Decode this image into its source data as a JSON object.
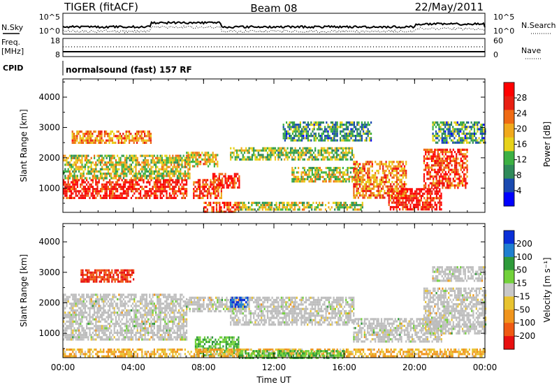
{
  "header": {
    "radar": "TIGER (fitACF)",
    "beam": "Beam 08",
    "date": "22/May/2011"
  },
  "top_strip": {
    "left_label": "N.Sky",
    "left_ticks": [
      "10^5",
      "10^0"
    ],
    "right_label": "N.Search",
    "right_ticks": [
      "10^5",
      "10^0"
    ]
  },
  "freq_strip": {
    "left_label_1": "Freq.",
    "left_label_2": "[MHz]",
    "left_ticks": [
      "18",
      "8"
    ],
    "right_label": "Nave",
    "right_ticks": [
      "60",
      "0"
    ]
  },
  "cpid": {
    "label": "CPID",
    "value": "normalsound (fast) 157 RF"
  },
  "colors": {
    "power_scale": [
      "#0000ff",
      "#1a4ab0",
      "#2f8a5a",
      "#3cb043",
      "#e7d21a",
      "#f0a91c",
      "#ef6a13",
      "#e81f12",
      "#ff0000"
    ],
    "velocity_scale": [
      "#0a2fd8",
      "#1f7fd0",
      "#2e9a3a",
      "#72d13a",
      "#c8c8c8",
      "#e8c330",
      "#f0941c",
      "#ef5a13",
      "#e81010"
    ],
    "ground_scatter": "#bdbdbd"
  },
  "chart_data": [
    {
      "type": "heatmap",
      "title": "",
      "xlabel": "",
      "ylabel": "Slant Range [km]",
      "x_ticks": [
        "00:00",
        "04:00",
        "08:00",
        "12:00",
        "16:00",
        "20:00",
        "00:00"
      ],
      "xlim_hours": [
        0,
        24
      ],
      "y_ticks": [
        1000,
        2000,
        3000,
        4000
      ],
      "ylim": [
        200,
        4600
      ],
      "colorbar": {
        "label": "Power [dB]",
        "ticks": [
          4,
          8,
          12,
          16,
          20,
          24,
          28
        ],
        "range": [
          0,
          32
        ]
      },
      "echo_bands": [
        {
          "t0": 0.0,
          "t1": 7.0,
          "r0": 700,
          "r1": 1300,
          "level": 28
        },
        {
          "t0": 0.0,
          "t1": 7.2,
          "r0": 1300,
          "r1": 2100,
          "level": 16
        },
        {
          "t0": 0.5,
          "t1": 5.0,
          "r0": 2500,
          "r1": 2900,
          "level": 22
        },
        {
          "t0": 7.0,
          "t1": 8.8,
          "r0": 1700,
          "r1": 2200,
          "level": 18
        },
        {
          "t0": 7.4,
          "t1": 9.0,
          "r0": 700,
          "r1": 1300,
          "level": 26
        },
        {
          "t0": 8.5,
          "t1": 10.0,
          "r0": 1000,
          "r1": 1500,
          "level": 28
        },
        {
          "t0": 8.0,
          "t1": 10.0,
          "r0": 250,
          "r1": 550,
          "level": 26
        },
        {
          "t0": 9.5,
          "t1": 16.5,
          "r0": 1950,
          "r1": 2350,
          "level": 14
        },
        {
          "t0": 13.0,
          "t1": 17.0,
          "r0": 1200,
          "r1": 1700,
          "level": 16
        },
        {
          "t0": 10.0,
          "t1": 17.0,
          "r0": 300,
          "r1": 550,
          "level": 15
        },
        {
          "t0": 16.5,
          "t1": 19.5,
          "r0": 700,
          "r1": 1900,
          "level": 22
        },
        {
          "t0": 18.5,
          "t1": 21.5,
          "r0": 300,
          "r1": 1000,
          "level": 28
        },
        {
          "t0": 20.5,
          "t1": 23.0,
          "r0": 1000,
          "r1": 2300,
          "level": 26
        },
        {
          "t0": 21.0,
          "t1": 24.0,
          "r0": 2500,
          "r1": 3200,
          "level": 10
        },
        {
          "t0": 12.5,
          "t1": 17.5,
          "r0": 2600,
          "r1": 3200,
          "level": 10
        }
      ]
    },
    {
      "type": "heatmap",
      "title": "",
      "xlabel": "Time UT",
      "ylabel": "Slant Range [km]",
      "x_ticks": [
        "00:00",
        "04:00",
        "08:00",
        "12:00",
        "16:00",
        "20:00",
        "00:00"
      ],
      "xlim_hours": [
        0,
        24
      ],
      "y_ticks": [
        1000,
        2000,
        3000,
        4000
      ],
      "ylim": [
        200,
        4600
      ],
      "colorbar": {
        "label": "Velocity [m s⁻¹]",
        "ticks": [
          "200",
          "100",
          "50",
          "15",
          "-15",
          "-50",
          "-100",
          "-200"
        ],
        "range": [
          -250,
          250
        ]
      },
      "echo_bands": [
        {
          "t0": 0.0,
          "t1": 7.0,
          "r0": 800,
          "r1": 2300,
          "level": 0,
          "ground": true
        },
        {
          "t0": 7.0,
          "t1": 10.0,
          "r0": 1700,
          "r1": 2200,
          "level": 0,
          "ground": true
        },
        {
          "t0": 7.5,
          "t1": 10.0,
          "r0": 300,
          "r1": 900,
          "level": 50
        },
        {
          "t0": 9.5,
          "t1": 16.5,
          "r0": 1300,
          "r1": 2200,
          "level": 0,
          "ground": true
        },
        {
          "t0": 9.5,
          "t1": 10.5,
          "r0": 1850,
          "r1": 2200,
          "level": 200
        },
        {
          "t0": 0.0,
          "t1": 24.0,
          "r0": 250,
          "r1": 500,
          "level": -50
        },
        {
          "t0": 1.0,
          "t1": 4.0,
          "r0": 2700,
          "r1": 3100,
          "level": -200
        },
        {
          "t0": 16.5,
          "t1": 21.5,
          "r0": 700,
          "r1": 1500,
          "level": 0,
          "ground": true
        },
        {
          "t0": 20.5,
          "t1": 24.0,
          "r0": 1000,
          "r1": 2500,
          "level": 0,
          "ground": true
        },
        {
          "t0": 21.0,
          "t1": 24.0,
          "r0": 2700,
          "r1": 3200,
          "level": 0,
          "ground": true
        },
        {
          "t0": 10.0,
          "t1": 16.0,
          "r0": 200,
          "r1": 450,
          "level": 50
        }
      ]
    }
  ]
}
